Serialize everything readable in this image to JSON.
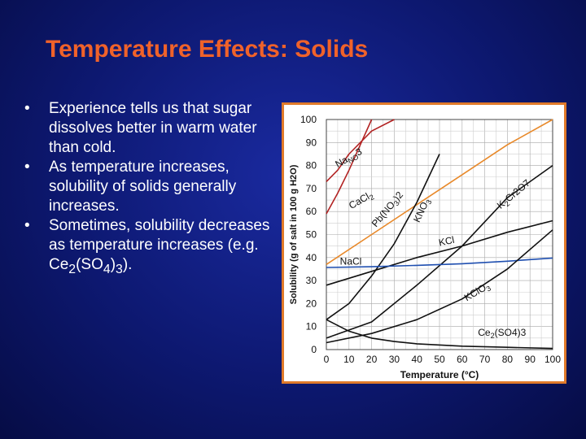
{
  "slide": {
    "title": "Temperature Effects: Solids",
    "bullets": [
      {
        "text": "Experience tells us that sugar dissolves better in warm water than cold."
      },
      {
        "text": "As temperature increases, solubility of solids generally increases."
      },
      {
        "text_before": "Sometimes, solubility decreases as temperature increases (e.g. Ce",
        "sub1": "2",
        "mid": "(SO",
        "sub2": "4",
        "mid2": ")",
        "sub3": "3",
        "after": ")."
      }
    ]
  },
  "colors": {
    "title": "#f0622a",
    "background": "#0d1870",
    "frame": "#e07a2a",
    "NaNO3": "#b22222",
    "CaCl2": "#b22222",
    "Pb(NO3)2": "#e8892a",
    "NaCl": "#1f4fb0",
    "others": "#111111"
  },
  "chart_data": {
    "type": "line",
    "xlabel": "Temperature (°C)",
    "ylabel": "Solubility (g of salt in 100 g H2O)",
    "xlim": [
      0,
      100
    ],
    "ylim": [
      0,
      100
    ],
    "xticks": [
      "0",
      "10",
      "20",
      "30",
      "40",
      "50",
      "60",
      "70",
      "80",
      "90",
      "100"
    ],
    "yticks": [
      "0",
      "10",
      "20",
      "30",
      "40",
      "50",
      "60",
      "70",
      "80",
      "90",
      "100"
    ],
    "grid": true,
    "series": [
      {
        "name": "NaNO3",
        "label_parts": [
          "Na",
          "NO",
          "3"
        ],
        "color": "#b22222",
        "x": [
          0,
          5,
          10,
          20,
          30
        ],
        "y": [
          73,
          78,
          85,
          95,
          100
        ]
      },
      {
        "name": "CaCl2",
        "label_parts": [
          "CaCl",
          "2",
          ""
        ],
        "color": "#b22222",
        "x": [
          0,
          5,
          10,
          15,
          20
        ],
        "y": [
          59,
          68,
          78,
          89,
          100
        ]
      },
      {
        "name": "Pb(NO3)2",
        "label_parts": [
          "Pb(NO",
          "3",
          ")2"
        ],
        "color": "#e8892a",
        "x": [
          0,
          20,
          40,
          60,
          80,
          100
        ],
        "y": [
          37,
          50,
          63,
          76,
          89,
          100
        ]
      },
      {
        "name": "KNO3",
        "label_parts": [
          "KNO",
          "3",
          ""
        ],
        "color": "#111111",
        "x": [
          0,
          10,
          20,
          30,
          40,
          50
        ],
        "y": [
          13,
          20,
          32,
          46,
          64,
          85
        ]
      },
      {
        "name": "K2Cr2O7",
        "label_parts": [
          "K",
          "2",
          "Cr2O7"
        ],
        "color": "#111111",
        "x": [
          0,
          20,
          40,
          60,
          80,
          100
        ],
        "y": [
          5,
          12,
          28,
          45,
          66,
          80
        ]
      },
      {
        "name": "KCl",
        "label_parts": [
          "KCl",
          "",
          ""
        ],
        "color": "#111111",
        "x": [
          0,
          20,
          40,
          60,
          80,
          100
        ],
        "y": [
          28,
          34,
          40,
          45,
          51,
          56
        ]
      },
      {
        "name": "NaCl",
        "label_parts": [
          "NaCl",
          "",
          ""
        ],
        "color": "#1f4fb0",
        "x": [
          0,
          20,
          40,
          60,
          80,
          100
        ],
        "y": [
          35.7,
          36,
          36.6,
          37.3,
          38.4,
          39.8
        ]
      },
      {
        "name": "KClO3",
        "label_parts": [
          "KClO",
          "3",
          ""
        ],
        "color": "#111111",
        "x": [
          0,
          20,
          40,
          60,
          80,
          100
        ],
        "y": [
          3,
          7,
          13,
          22,
          35,
          52
        ]
      },
      {
        "name": "Ce2(SO4)3",
        "label_parts": [
          "Ce",
          "2",
          "(SO4)3"
        ],
        "color": "#111111",
        "x": [
          0,
          10,
          20,
          30,
          40,
          60,
          80,
          100
        ],
        "y": [
          13,
          8,
          5,
          3.5,
          2.5,
          1.5,
          1,
          0.5
        ]
      }
    ]
  }
}
